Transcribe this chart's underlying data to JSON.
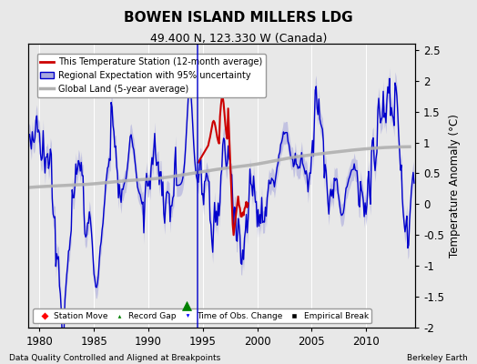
{
  "title": "BOWEN ISLAND MILLERS LDG",
  "subtitle": "49.400 N, 123.330 W (Canada)",
  "xlabel_note": "Data Quality Controlled and Aligned at Breakpoints",
  "xlabel_right": "Berkeley Earth",
  "ylabel": "Temperature Anomaly (°C)",
  "xlim": [
    1979,
    2014.5
  ],
  "ylim": [
    -2.0,
    2.6
  ],
  "yticks": [
    -2,
    -1.5,
    -1,
    -0.5,
    0,
    0.5,
    1,
    1.5,
    2,
    2.5
  ],
  "xticks": [
    1980,
    1985,
    1990,
    1995,
    2000,
    2005,
    2010
  ],
  "color_station": "#cc0000",
  "color_regional_line": "#0000cc",
  "color_regional_fill": "#aaaadd",
  "color_global": "#b0b0b0",
  "background_color": "#e8e8e8",
  "plot_bg": "#e8e8e8",
  "obs_change_x": 1994.5,
  "record_gap_x": 1993.5,
  "record_gap_y": -1.65
}
